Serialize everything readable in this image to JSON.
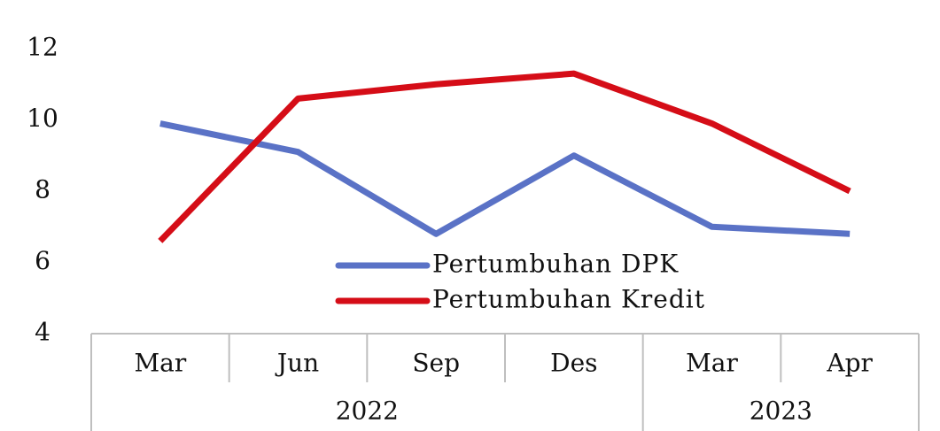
{
  "chart_data": {
    "type": "line",
    "groups": [
      {
        "label": "2022",
        "categories": [
          "Mar",
          "Jun",
          "Sep",
          "Des"
        ]
      },
      {
        "label": "2023",
        "categories": [
          "Mar",
          "Apr"
        ]
      }
    ],
    "series": [
      {
        "name": "Pertumbuhan DPK",
        "color": "#5a72c6",
        "values": [
          9.9,
          9.1,
          6.8,
          9.0,
          7.0,
          6.8
        ]
      },
      {
        "name": "Pertumbuhan Kredit",
        "color": "#d50d17",
        "values": [
          6.6,
          10.6,
          11.0,
          11.3,
          9.9,
          8.0
        ]
      }
    ],
    "ylim": [
      4,
      12
    ],
    "yticks": [
      4,
      6,
      8,
      10,
      12
    ],
    "grid": false
  }
}
